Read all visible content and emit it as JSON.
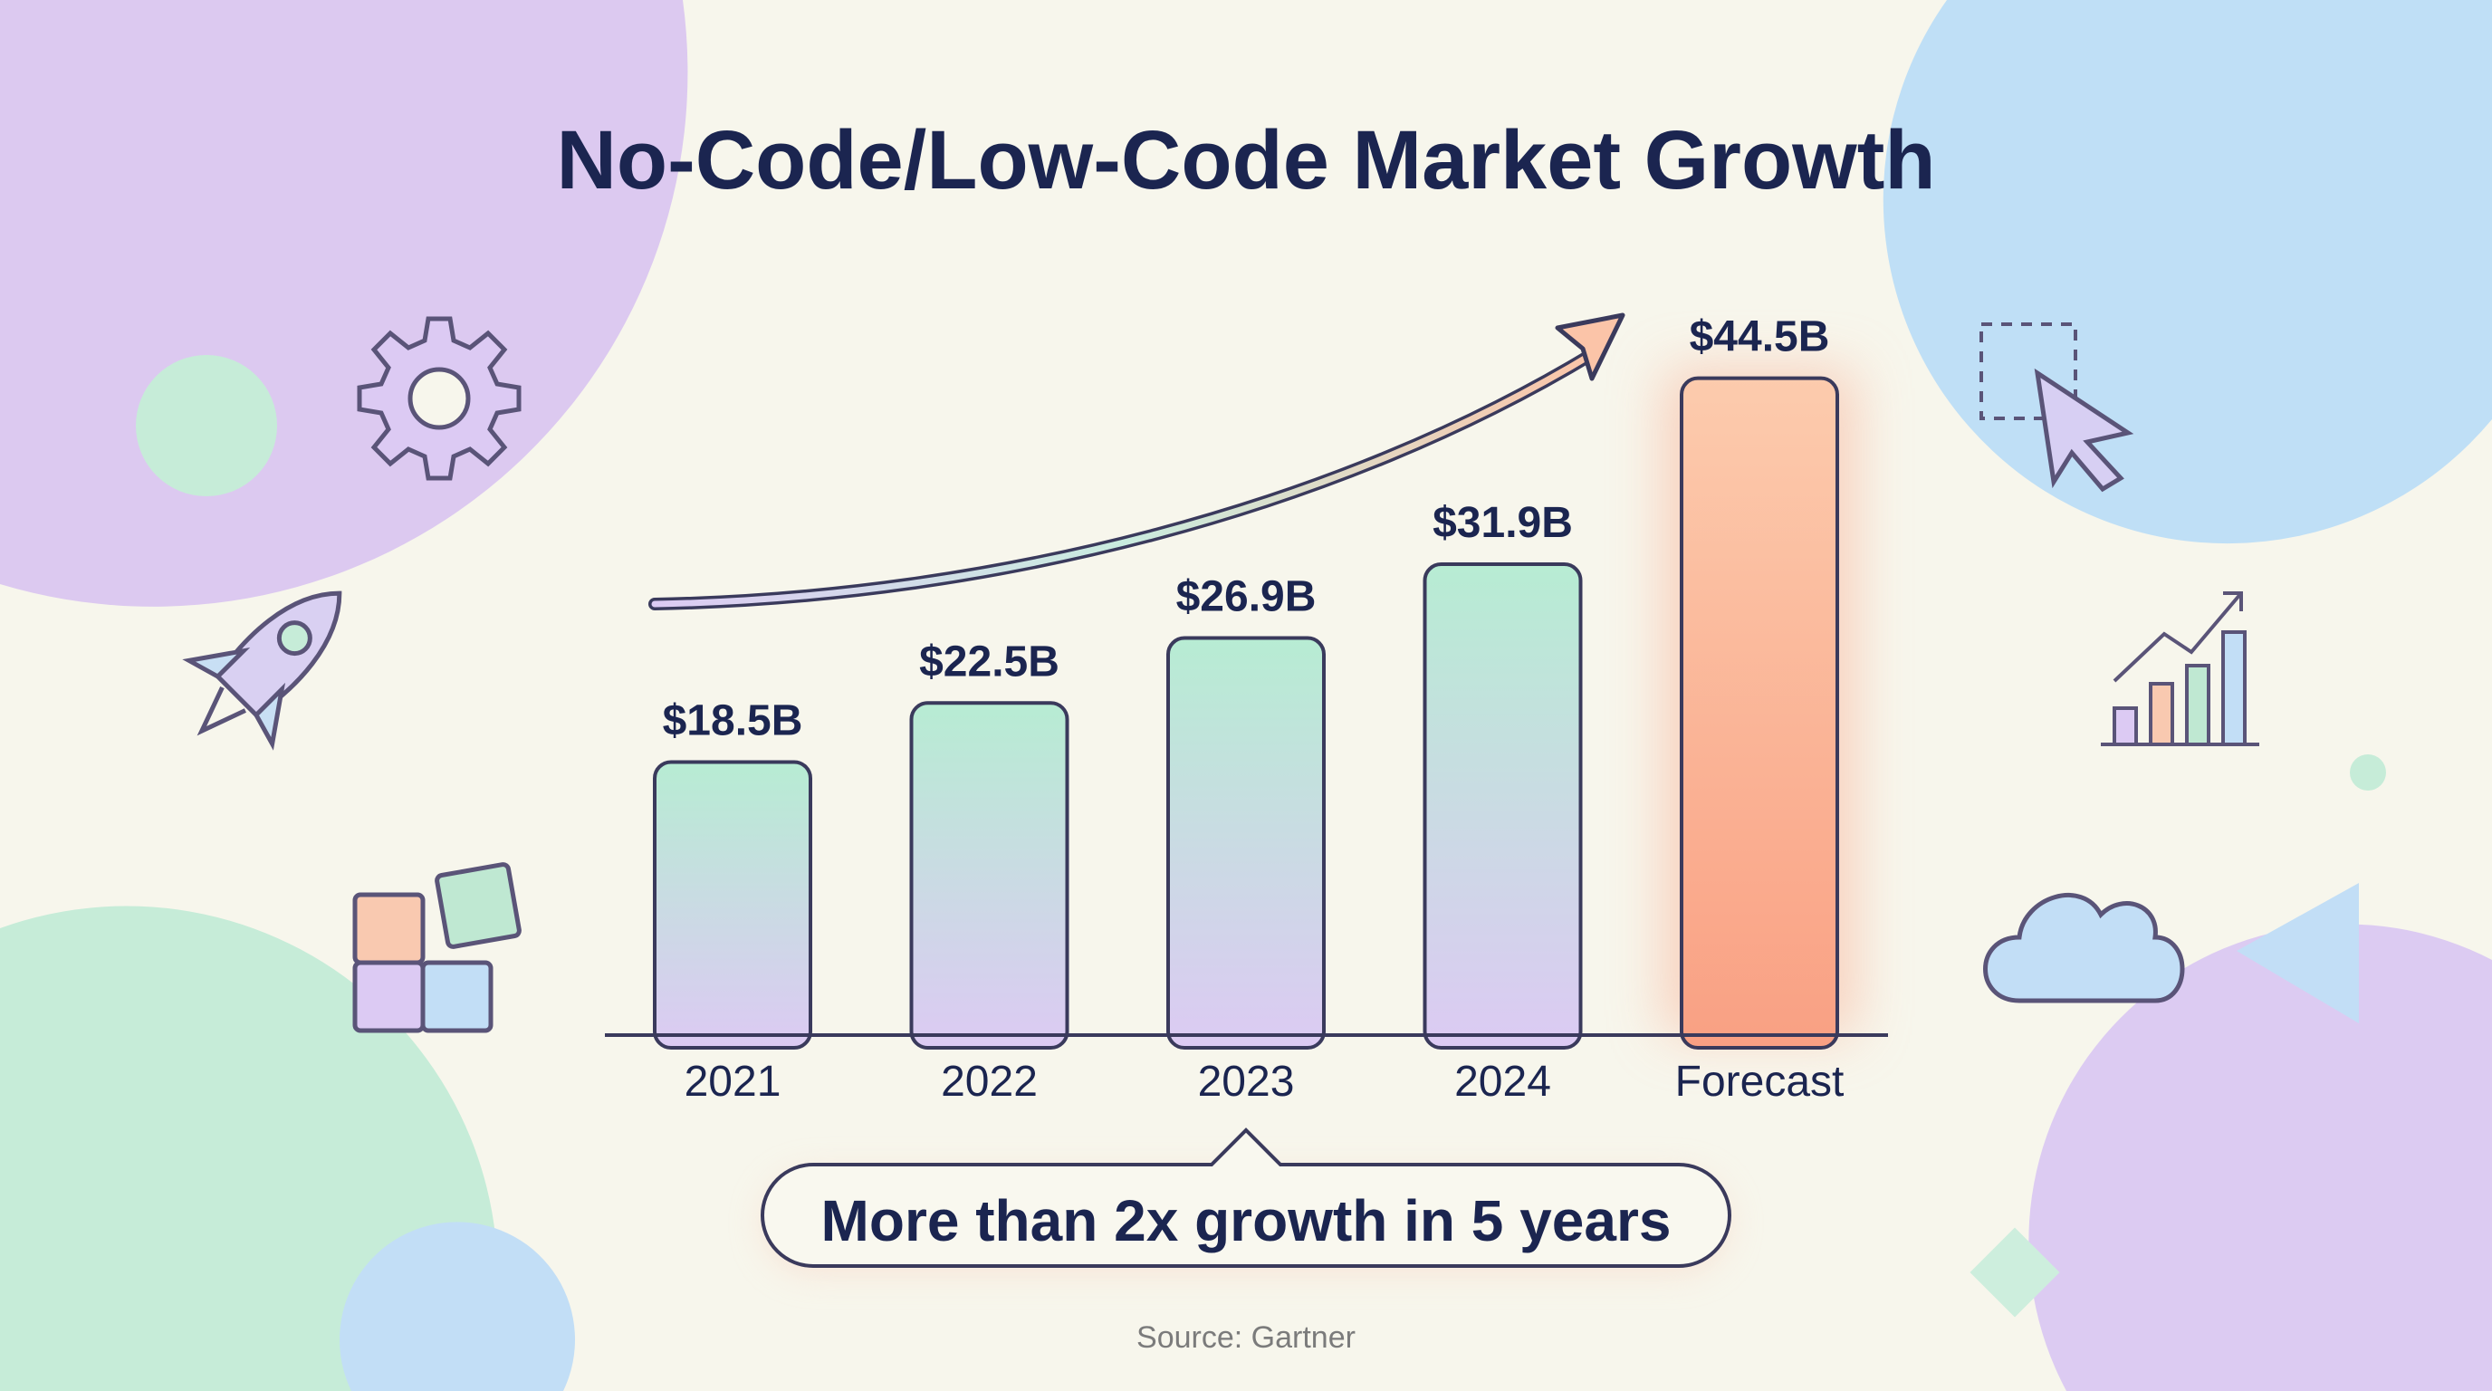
{
  "chart_data": {
    "type": "bar",
    "title": "No-Code/Low-Code Market Growth",
    "categories": [
      "2021",
      "2022",
      "2023",
      "2024",
      "Forecast"
    ],
    "values": [
      18.5,
      22.5,
      26.9,
      31.9,
      44.5
    ],
    "value_labels": [
      "$18.5B",
      "$22.5B",
      "$26.9B",
      "$31.9B",
      "$44.5B"
    ],
    "unit": "B USD",
    "ylim": [
      0,
      45
    ],
    "grid": false,
    "colors": {
      "bar_top": "#b7ecd3",
      "bar_bottom": "#dccaf3",
      "forecast_top": "#fccbad",
      "forecast_bottom": "#f9a083",
      "outline": "#3a3a5c",
      "text": "#1b2550"
    },
    "trend_arrow": "up",
    "callout": "More than 2x growth in 5 years",
    "source": "Source: Gartner"
  },
  "decorations": [
    "gear-icon",
    "rocket-icon",
    "puzzle-icon",
    "cursor-icon",
    "bar-chart-icon",
    "cloud-icon"
  ]
}
